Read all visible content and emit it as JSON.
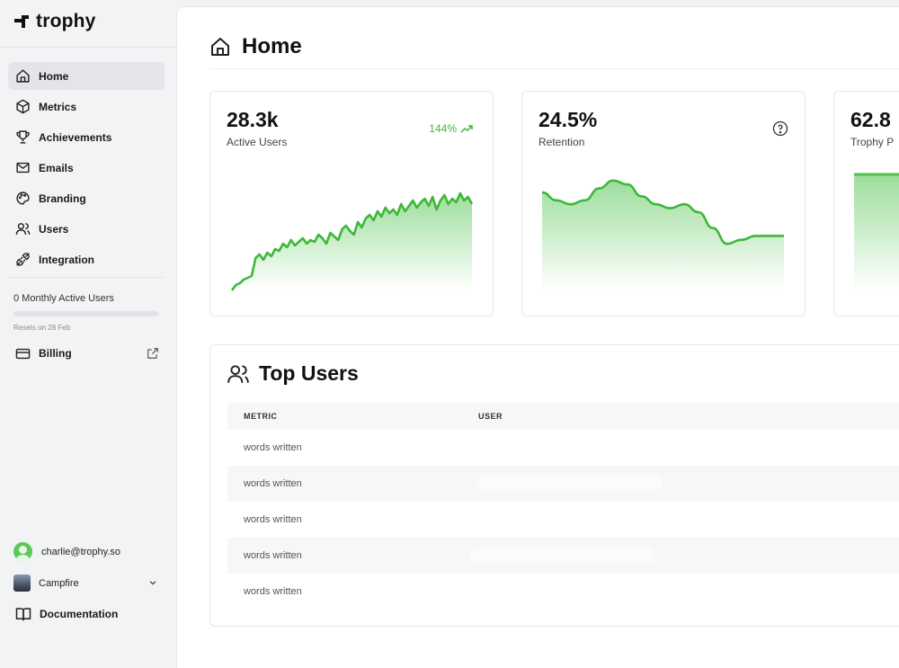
{
  "brand": {
    "name": "trophy",
    "accent": "#3db83a"
  },
  "sidebar": {
    "items": [
      {
        "label": "Home",
        "icon": "home-icon",
        "active": true
      },
      {
        "label": "Metrics",
        "icon": "cube-icon"
      },
      {
        "label": "Achievements",
        "icon": "trophy-icon"
      },
      {
        "label": "Emails",
        "icon": "mail-icon"
      },
      {
        "label": "Branding",
        "icon": "palette-icon"
      },
      {
        "label": "Users",
        "icon": "users-icon"
      },
      {
        "label": "Integration",
        "icon": "plug-icon"
      }
    ],
    "usage": {
      "label": "0 Monthly Active Users",
      "resets": "Resets on 28 Feb",
      "progress": 0
    },
    "billing": {
      "label": "Billing"
    },
    "account": {
      "email": "charlie@trophy.so"
    },
    "org": {
      "name": "Campfire"
    },
    "docs": {
      "label": "Documentation"
    }
  },
  "main": {
    "title": "Home",
    "cards": [
      {
        "value": "28.3k",
        "label": "Active Users",
        "trend": "144%"
      },
      {
        "value": "24.5%",
        "label": "Retention"
      },
      {
        "value": "62.8",
        "label": "Trophy P"
      }
    ],
    "top_users": {
      "title": "Top Users",
      "columns": [
        "METRIC",
        "USER"
      ],
      "rows": [
        {
          "metric": "words written"
        },
        {
          "metric": "words written"
        },
        {
          "metric": "words written"
        },
        {
          "metric": "words written"
        },
        {
          "metric": "words written"
        }
      ]
    }
  },
  "chart_data": [
    {
      "type": "area",
      "title": "Active Users",
      "values": [
        2,
        5,
        6,
        8,
        9,
        10,
        20,
        22,
        19,
        23,
        21,
        25,
        24,
        28,
        26,
        30,
        27,
        29,
        31,
        28,
        30,
        29,
        33,
        31,
        28,
        34,
        32,
        30,
        36,
        38,
        35,
        33,
        40,
        37,
        42,
        44,
        41,
        46,
        43,
        48,
        45,
        47,
        44,
        50,
        46,
        49,
        52,
        48,
        51,
        53,
        49,
        54,
        47,
        52,
        55,
        50,
        53,
        51,
        56,
        52,
        54,
        50
      ],
      "ylim": [
        0,
        60
      ]
    },
    {
      "type": "area",
      "title": "Retention",
      "values": [
        30,
        28,
        27,
        28,
        31,
        33,
        32,
        29,
        27,
        26,
        27,
        25,
        21,
        17,
        18,
        19,
        19,
        19
      ],
      "ylim": [
        10,
        35
      ]
    }
  ]
}
